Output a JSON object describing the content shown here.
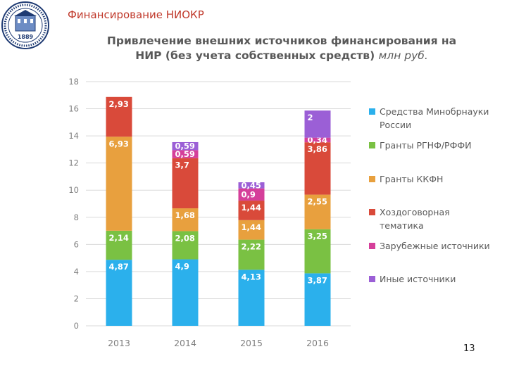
{
  "slide": {
    "title": "Финансирование НИОКР",
    "page_number": "13",
    "logo_text": "1889"
  },
  "chart_data": {
    "type": "bar",
    "stacked": true,
    "title": "Привлечение внешних источников финансирования на НИР (без учета собственных средств)",
    "unit": "млн руб.",
    "categories": [
      "2013",
      "2014",
      "2015",
      "2016"
    ],
    "ylim": [
      0,
      18
    ],
    "yticks": [
      "0",
      "2",
      "4",
      "6",
      "8",
      "10",
      "12",
      "14",
      "16",
      "18"
    ],
    "grid": true,
    "legend_position": "right",
    "series": [
      {
        "name": "Средства Минобрнауки России",
        "color": "#2bb0ec",
        "values": [
          4.87,
          4.9,
          4.13,
          3.87
        ],
        "labels": [
          "4,87",
          "4,9",
          "4,13",
          "3,87"
        ]
      },
      {
        "name": "Гранты РГНФ/РФФИ",
        "color": "#7ac143",
        "values": [
          2.14,
          2.08,
          2.22,
          3.25
        ],
        "labels": [
          "2,14",
          "2,08",
          "2,22",
          "3,25"
        ]
      },
      {
        "name": "Гранты ККФН",
        "color": "#e8a03e",
        "values": [
          6.93,
          1.68,
          1.44,
          2.55
        ],
        "labels": [
          "6,93",
          "1,68",
          "1,44",
          "2,55"
        ]
      },
      {
        "name": "Хоздоговорная тематика",
        "color": "#d94a3a",
        "values": [
          2.93,
          3.7,
          1.44,
          3.86
        ],
        "labels": [
          "2,93",
          "3,7",
          "1,44",
          "3,86"
        ]
      },
      {
        "name": "Зарубежные источники",
        "color": "#d53f9a",
        "values": [
          0,
          0.59,
          0.9,
          0.34
        ],
        "labels": [
          "",
          "0,59",
          "0,9",
          "0,34"
        ]
      },
      {
        "name": "Иные источники",
        "color": "#9b5fd6",
        "values": [
          0,
          0.59,
          0.45,
          2
        ],
        "labels": [
          "",
          "0,59",
          "0,45",
          "2"
        ]
      }
    ]
  }
}
